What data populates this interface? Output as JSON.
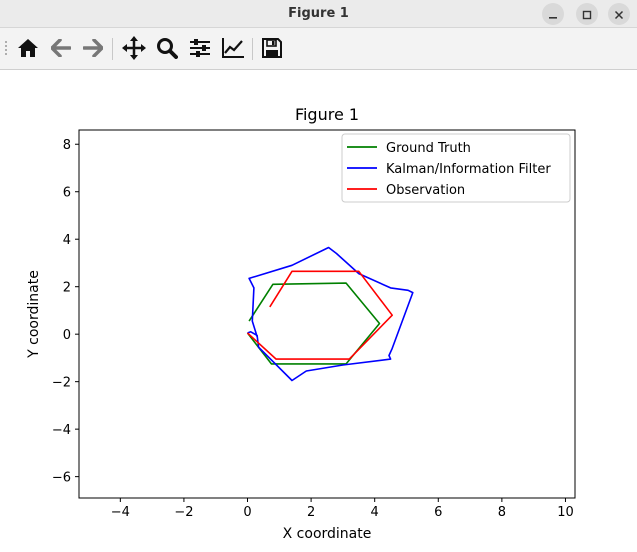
{
  "window": {
    "title": "Figure 1"
  },
  "toolbar": {
    "buttons": [
      {
        "name": "home-icon",
        "tip": "Home"
      },
      {
        "name": "back-icon",
        "tip": "Back"
      },
      {
        "name": "forward-icon",
        "tip": "Forward"
      },
      {
        "name": "pan-icon",
        "tip": "Pan"
      },
      {
        "name": "zoom-icon",
        "tip": "Zoom"
      },
      {
        "name": "subplots-icon",
        "tip": "Subplots"
      },
      {
        "name": "edit-axis-icon",
        "tip": "Customize"
      },
      {
        "name": "save-icon",
        "tip": "Save"
      }
    ]
  },
  "chart_data": {
    "type": "line",
    "title": "Figure 1",
    "xlabel": "X coordinate",
    "ylabel": "Y coordinate",
    "xlim": [
      -5.3,
      10.3
    ],
    "ylim": [
      -6.9,
      8.6
    ],
    "xticks": [
      -4,
      -2,
      0,
      2,
      4,
      6,
      8,
      10
    ],
    "yticks": [
      -6,
      -4,
      -2,
      0,
      2,
      4,
      6,
      8
    ],
    "xtick_labels": [
      "−4",
      "−2",
      "0",
      "2",
      "4",
      "6",
      "8",
      "10"
    ],
    "ytick_labels": [
      "−6",
      "−4",
      "−2",
      "0",
      "2",
      "4",
      "6",
      "8"
    ],
    "grid": false,
    "legend_position": "top-right",
    "series": [
      {
        "name": "Ground Truth",
        "color": "#008000",
        "x": [
          0.05,
          0.8,
          3.1,
          4.15,
          3.1,
          0.75,
          0.0
        ],
        "y": [
          0.55,
          2.1,
          2.15,
          0.45,
          -1.25,
          -1.25,
          0.05
        ]
      },
      {
        "name": "Kalman/Information Filter",
        "color": "#0000ff",
        "x": [
          0.3,
          0.15,
          0.2,
          0.05,
          1.4,
          2.55,
          2.8,
          3.5,
          4.5,
          5.05,
          5.2,
          4.55,
          4.45,
          4.5,
          3.0,
          1.85,
          1.4,
          0.35,
          0.3,
          0.1,
          0.0
        ],
        "y": [
          -0.1,
          0.55,
          1.95,
          2.35,
          2.9,
          3.65,
          3.4,
          2.55,
          1.95,
          1.85,
          1.75,
          -0.6,
          -0.9,
          -1.05,
          -1.3,
          -1.55,
          -1.95,
          -0.55,
          -0.05,
          0.1,
          0.05
        ]
      },
      {
        "name": "Observation",
        "color": "#ff0000",
        "x": [
          0.7,
          1.4,
          3.5,
          4.55,
          3.2,
          0.9,
          0.0
        ],
        "y": [
          1.15,
          2.65,
          2.65,
          0.8,
          -1.05,
          -1.05,
          0.05
        ]
      }
    ]
  }
}
